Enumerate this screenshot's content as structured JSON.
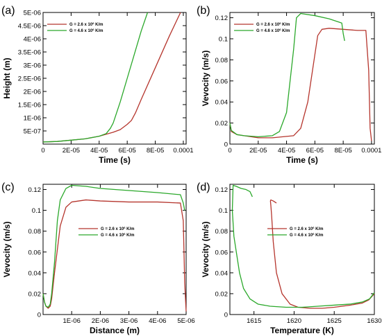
{
  "figure": {
    "colors": {
      "red": "#b5342c",
      "green": "#2aa82a"
    }
  },
  "chart_data": [
    {
      "panel": "(a)",
      "type": "line",
      "xlabel": "Time (s)",
      "ylabel": "Height (m)",
      "xlim": [
        0,
        0.000102
      ],
      "ylim": [
        0,
        5e-06
      ],
      "xticks": [
        0,
        2e-05,
        4e-05,
        6e-05,
        8e-05,
        0.0001
      ],
      "xtick_labels": [
        "0",
        "2E-05",
        "4E-05",
        "6E-05",
        "8E-05",
        "0.0001"
      ],
      "yticks": [
        5e-07,
        1e-06,
        1.5e-06,
        2e-06,
        2.5e-06,
        3e-06,
        3.5e-06,
        4e-06,
        4.5e-06,
        5e-06
      ],
      "ytick_labels": [
        "5E-07",
        "1E-06",
        "1.5E-06",
        "2E-06",
        "2.5E-06",
        "3E-06",
        "3.5E-06",
        "4E-06",
        "4.5E-06",
        "5E-06"
      ],
      "legend_position": "top-left",
      "series": [
        {
          "name": "G = 2.6 x 10^6 K/m",
          "color": "red",
          "x": [
            0,
            1e-05,
            2e-05,
            3e-05,
            4e-05,
            5e-05,
            5.5e-05,
            6e-05,
            6.3e-05,
            6.6e-05,
            7e-05,
            8e-05,
            9e-05,
            9.8e-05
          ],
          "y": [
            8e-08,
            1e-07,
            1.5e-07,
            2e-07,
            3e-07,
            4.5e-07,
            5.5e-07,
            7.5e-07,
            9e-07,
            1.2e-06,
            1.7e-06,
            2.9e-06,
            4.1e-06,
            5e-06
          ]
        },
        {
          "name": "G = 4.6 x 10^6 K/m",
          "color": "green",
          "x": [
            0,
            1e-05,
            2e-05,
            3e-05,
            4e-05,
            4.5e-05,
            4.8e-05,
            5e-05,
            5.5e-05,
            6e-05,
            6.5e-05,
            7e-05,
            7.45e-05
          ],
          "y": [
            8e-08,
            1e-07,
            1.5e-07,
            2e-07,
            3e-07,
            4e-07,
            6e-07,
            8e-07,
            1.6e-06,
            2.5e-06,
            3.4e-06,
            4.3e-06,
            5e-06
          ]
        }
      ]
    },
    {
      "panel": "(b)",
      "type": "line",
      "xlabel": "Time (s)",
      "ylabel": "Vevocity (m/s)",
      "xlim": [
        0,
        0.000102
      ],
      "ylim": [
        0,
        0.125
      ],
      "xticks": [
        0,
        2e-05,
        4e-05,
        6e-05,
        8e-05,
        0.0001
      ],
      "xtick_labels": [
        "0",
        "2E-05",
        "4E-05",
        "6E-05",
        "8E-05",
        "0.0001"
      ],
      "yticks": [
        0,
        0.02,
        0.04,
        0.06,
        0.08,
        0.1,
        0.12
      ],
      "ytick_labels": [
        "0",
        "0.02",
        "0.04",
        "0.06",
        "0.08",
        "0.1",
        "0.12"
      ],
      "legend_position": "top-left",
      "series": [
        {
          "name": "G = 2.6 x 10^6 K/m",
          "color": "red",
          "x": [
            0,
            1e-06,
            5e-06,
            1e-05,
            2e-05,
            3e-05,
            4.5e-05,
            5e-05,
            5.5e-05,
            6e-05,
            6.2e-05,
            6.5e-05,
            7e-05,
            8e-05,
            9e-05,
            9.6e-05,
            9.8e-05,
            9.9e-05,
            0.0001
          ],
          "y": [
            0.02,
            0.012,
            0.009,
            0.008,
            0.006,
            0.006,
            0.008,
            0.015,
            0.04,
            0.085,
            0.103,
            0.109,
            0.11,
            0.109,
            0.108,
            0.108,
            0.07,
            0.015,
            0.003
          ]
        },
        {
          "name": "G = 4.6 x 10^6 K/m",
          "color": "green",
          "x": [
            0,
            1e-06,
            5e-06,
            1e-05,
            2e-05,
            3e-05,
            3.5e-05,
            4e-05,
            4.5e-05,
            4.7e-05,
            5e-05,
            6e-05,
            7e-05,
            7.9e-05,
            8e-05,
            8.1e-05
          ],
          "y": [
            0.02,
            0.013,
            0.009,
            0.008,
            0.007,
            0.008,
            0.012,
            0.03,
            0.09,
            0.12,
            0.124,
            0.122,
            0.119,
            0.115,
            0.105,
            0.098
          ]
        }
      ]
    },
    {
      "panel": "(c)",
      "type": "line",
      "xlabel": "Distance (m)",
      "ylabel": "Vevocity (m/s)",
      "xlim": [
        0,
        5e-06
      ],
      "ylim": [
        0,
        0.125
      ],
      "xticks": [
        1e-06,
        2e-06,
        3e-06,
        4e-06,
        5e-06
      ],
      "xtick_labels": [
        "1E-06",
        "2E-06",
        "3E-06",
        "4E-06",
        "5E-06"
      ],
      "yticks": [
        0,
        0.02,
        0.04,
        0.06,
        0.08,
        0.1,
        0.12
      ],
      "ytick_labels": [
        "0",
        "0.02",
        "0.04",
        "0.06",
        "0.08",
        "0.1",
        "0.12"
      ],
      "legend_position": "center-right",
      "series": [
        {
          "name": "G = 2.6 x 10^6 K/m",
          "color": "red",
          "x": [
            0,
            5e-08,
            1e-07,
            1.8e-07,
            2.5e-07,
            3e-07,
            4e-07,
            6e-07,
            8e-07,
            1e-06,
            1.5e-06,
            2e-06,
            3e-06,
            4e-06,
            4.8e-06,
            4.9e-06,
            4.95e-06,
            5e-06
          ],
          "y": [
            0.02,
            0.012,
            0.008,
            0.006,
            0.008,
            0.015,
            0.04,
            0.085,
            0.103,
            0.108,
            0.11,
            0.109,
            0.108,
            0.108,
            0.107,
            0.09,
            0.03,
            0.003
          ]
        },
        {
          "name": "G = 4.6 x 10^6 K/m",
          "color": "green",
          "x": [
            0,
            5e-08,
            1e-07,
            1.8e-07,
            2.5e-07,
            3e-07,
            4e-07,
            5e-07,
            6e-07,
            8e-07,
            1e-06,
            1.5e-06,
            2e-06,
            3e-06,
            4e-06,
            4.8e-06,
            4.9e-06,
            4.95e-06
          ],
          "y": [
            0.02,
            0.012,
            0.008,
            0.007,
            0.01,
            0.02,
            0.05,
            0.09,
            0.11,
            0.121,
            0.124,
            0.123,
            0.121,
            0.119,
            0.117,
            0.115,
            0.107,
            0.1
          ]
        }
      ]
    },
    {
      "panel": "(d)",
      "type": "line",
      "xlabel": "Temperature (K)",
      "ylabel": "Vevocity (m/s)",
      "xlim": [
        1612,
        1630
      ],
      "ylim": [
        0,
        0.125
      ],
      "xticks": [
        1615,
        1620,
        1625,
        1630
      ],
      "xtick_labels": [
        "1615",
        "1620",
        "1625",
        "1630"
      ],
      "yticks": [
        0,
        0.02,
        0.04,
        0.06,
        0.08,
        0.1,
        0.12
      ],
      "ytick_labels": [
        "0",
        "0.02",
        "0.04",
        "0.06",
        "0.08",
        "0.1",
        "0.12"
      ],
      "legend_position": "center",
      "series": [
        {
          "name": "G = 2.6 x 10^6 K/m",
          "color": "red",
          "x": [
            1630,
            1629.3,
            1628.5,
            1627,
            1625,
            1623.5,
            1622,
            1620.5,
            1619.5,
            1618.5,
            1617.8,
            1617.4,
            1617.2,
            1617.1,
            1617.05,
            1617.1,
            1617.4,
            1617.6,
            1617.8
          ],
          "y": [
            0.02,
            0.014,
            0.011,
            0.009,
            0.007,
            0.006,
            0.006,
            0.007,
            0.01,
            0.02,
            0.04,
            0.07,
            0.095,
            0.105,
            0.109,
            0.11,
            0.109,
            0.108,
            0.107
          ]
        },
        {
          "name": "G = 4.6 x 10^6 K/m",
          "color": "green",
          "x": [
            1630,
            1629.4,
            1628.5,
            1627,
            1625,
            1623,
            1621,
            1619,
            1617,
            1615.5,
            1614.5,
            1613.7,
            1613.2,
            1612.8,
            1612.5,
            1612.3,
            1612.4,
            1612.8,
            1613.4,
            1614,
            1614.5,
            1614.8
          ],
          "y": [
            0.021,
            0.015,
            0.012,
            0.01,
            0.009,
            0.008,
            0.007,
            0.007,
            0.008,
            0.01,
            0.015,
            0.025,
            0.04,
            0.06,
            0.075,
            0.1,
            0.124,
            0.123,
            0.121,
            0.12,
            0.118,
            0.113
          ]
        }
      ]
    }
  ]
}
